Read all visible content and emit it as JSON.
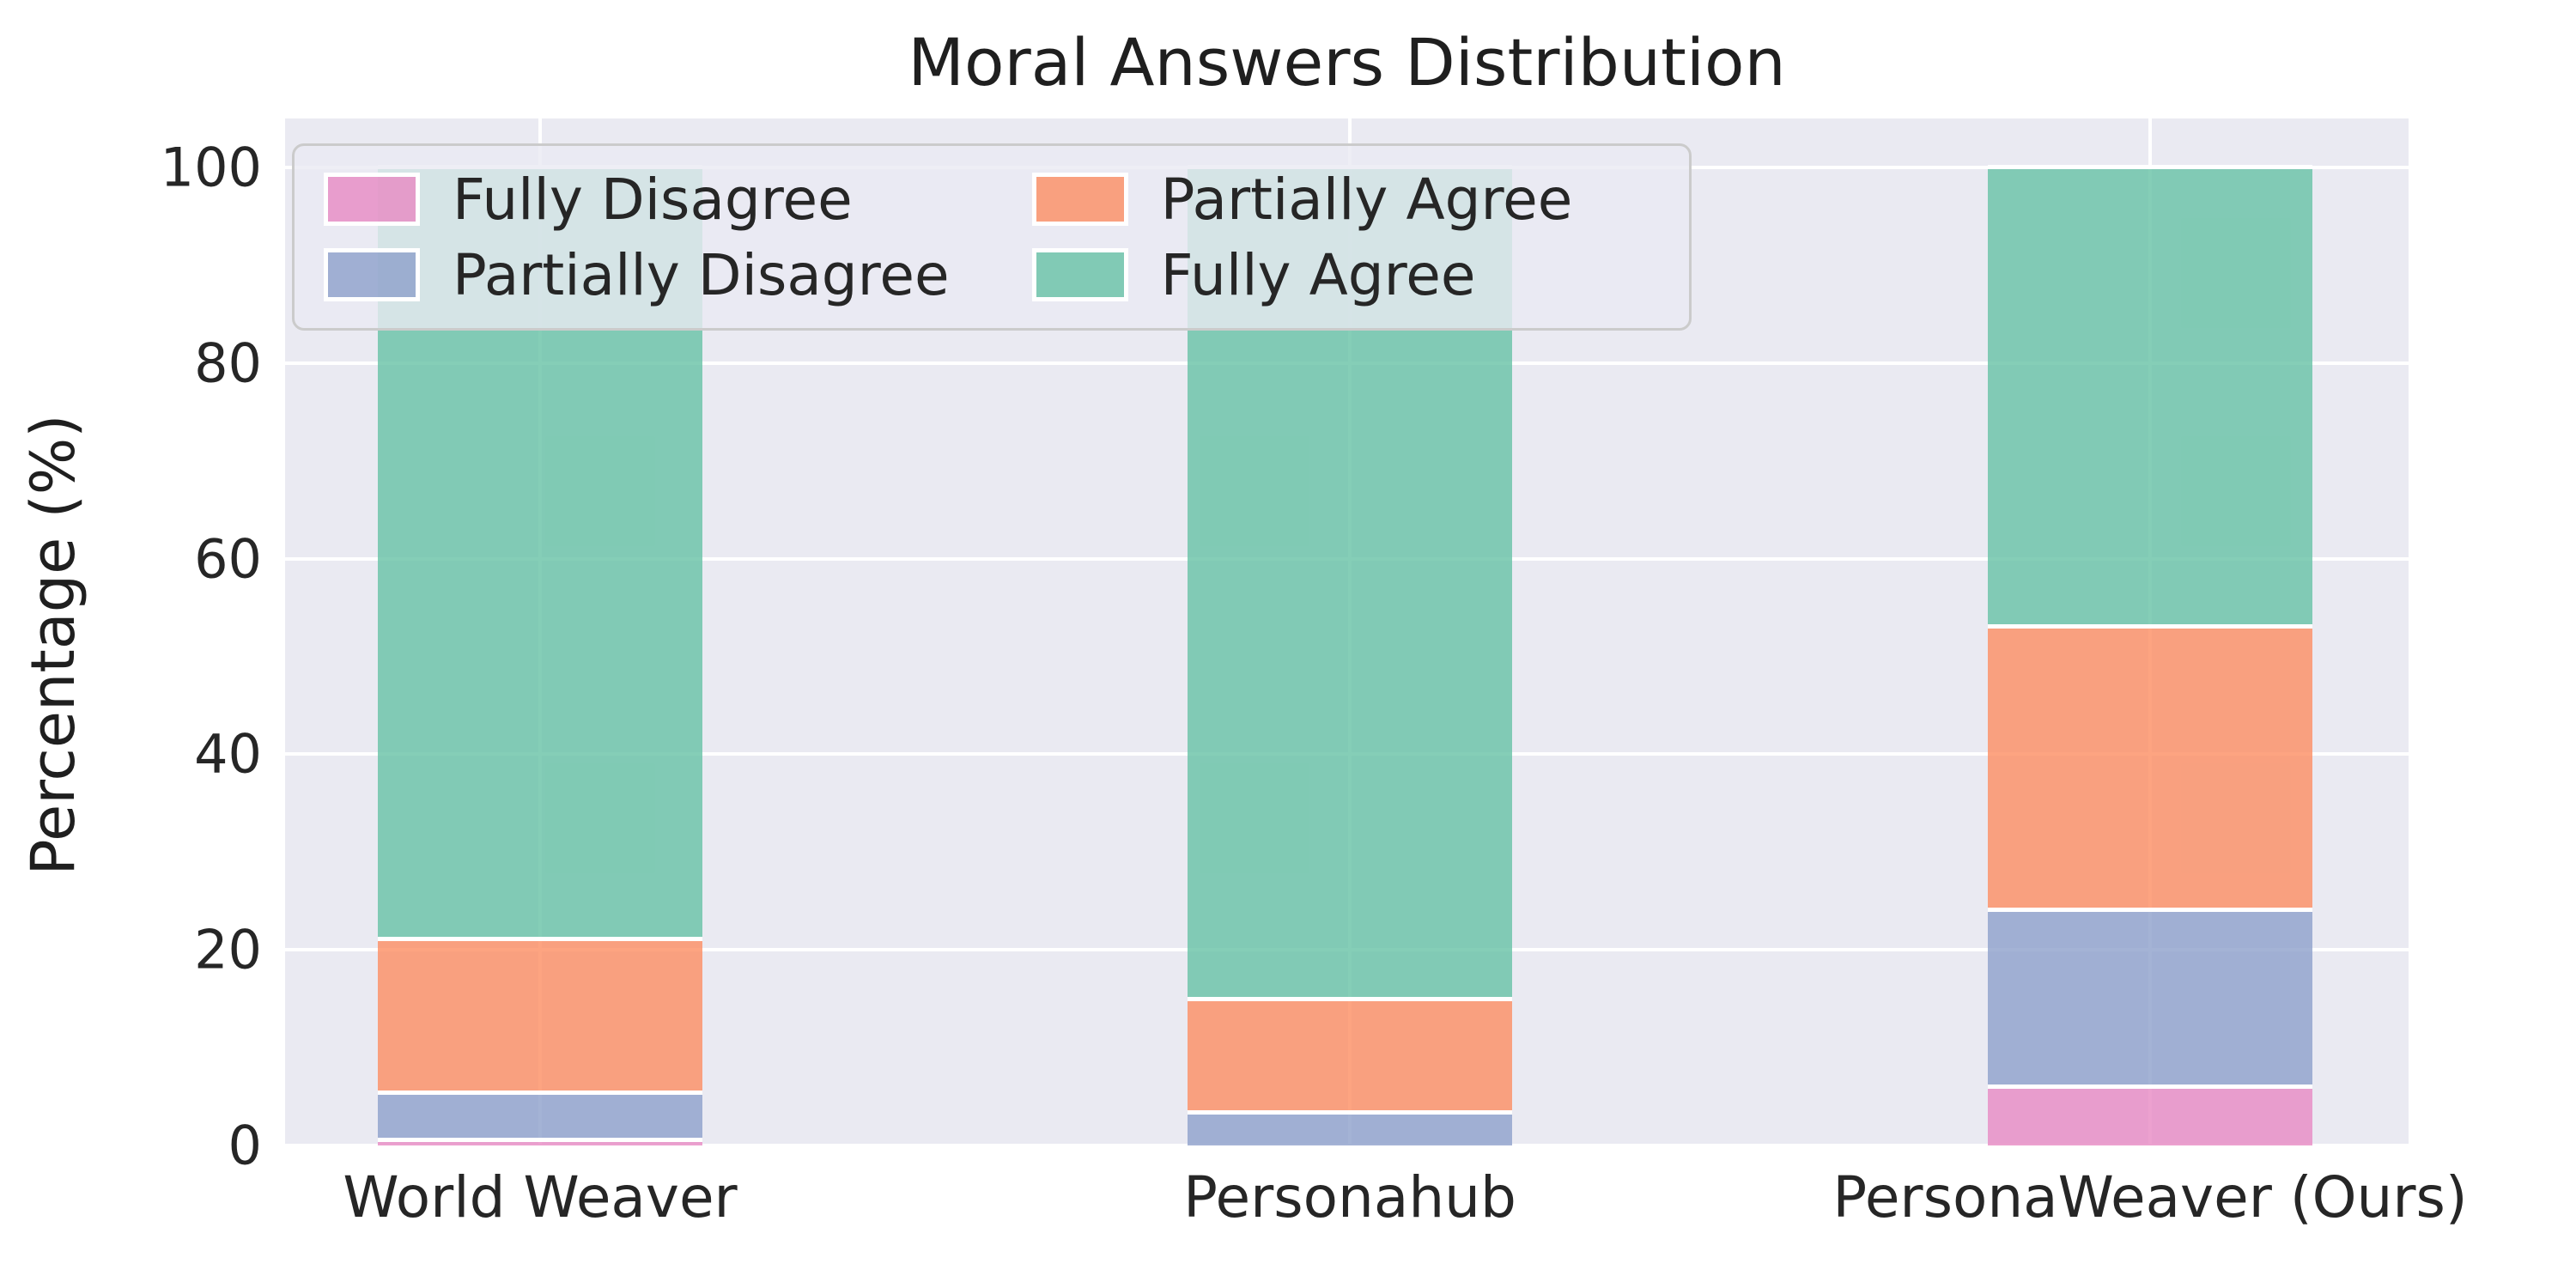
{
  "title": "Moral Answers Distribution",
  "axes": {
    "ylabel": "Percentage (%)",
    "yticks": [
      0,
      20,
      40,
      60,
      80,
      100
    ],
    "xticklabels": [
      "World Weaver",
      "Personahub",
      "PersonaWeaver (Ours)"
    ]
  },
  "legend": {
    "items": [
      {
        "label": "Fully Disagree",
        "color": "#e78ac3"
      },
      {
        "label": "Partially Disagree",
        "color": "#8da0cb"
      },
      {
        "label": "Partially Agree",
        "color": "#fc8d62"
      },
      {
        "label": "Fully Agree",
        "color": "#66c2a5"
      }
    ]
  },
  "colors": {
    "plot_background": "#eaeaf2",
    "figure_background": "#ffffff",
    "gridline": "#ffffff",
    "bar_edge": "#ffffff",
    "text": "#262626"
  },
  "chart_data": {
    "type": "bar",
    "stacked": true,
    "title": "Moral Answers Distribution",
    "xlabel": "",
    "ylabel": "Percentage (%)",
    "categories": [
      "World Weaver",
      "Personahub",
      "PersonaWeaver (Ours)"
    ],
    "series": [
      {
        "name": "Fully Disagree",
        "color": "#e78ac3",
        "values": [
          0.6,
          0.0,
          6.0
        ]
      },
      {
        "name": "Partially Disagree",
        "color": "#8da0cb",
        "values": [
          4.8,
          3.4,
          18.1
        ]
      },
      {
        "name": "Partially Agree",
        "color": "#fc8d62",
        "values": [
          15.7,
          11.6,
          29.0
        ]
      },
      {
        "name": "Fully Agree",
        "color": "#66c2a5",
        "values": [
          78.9,
          85.0,
          46.9
        ]
      }
    ],
    "ylim": [
      0,
      105
    ],
    "yticks": [
      0,
      20,
      40,
      60,
      80,
      100
    ],
    "grid": true,
    "bar_alpha": 0.8,
    "legend_position": "upper left",
    "legend_ncol": 2
  }
}
